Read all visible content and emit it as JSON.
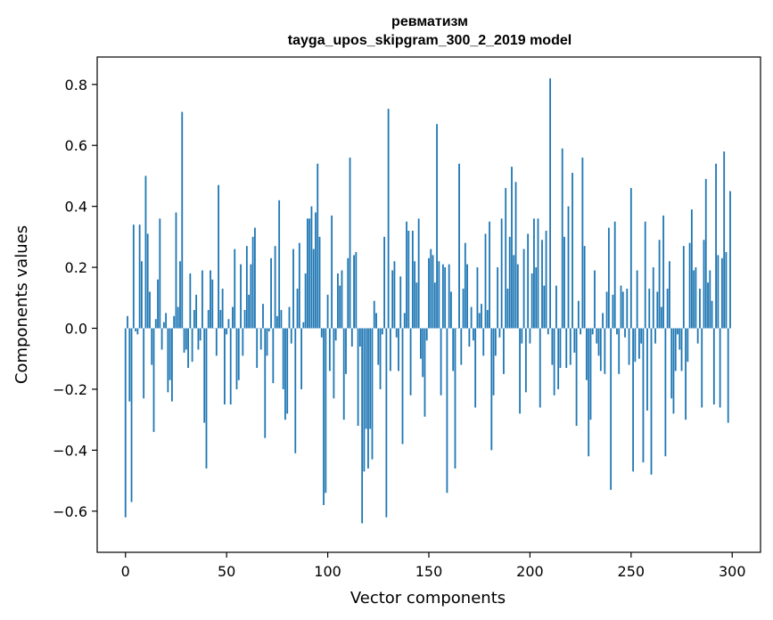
{
  "chart_data": {
    "type": "bar",
    "title": "ревматизм",
    "subtitle": "tayga_upos_skipgram_300_2_2019 model",
    "xlabel": "Vector components",
    "ylabel": "Components values",
    "xlim": [
      -14,
      314
    ],
    "ylim": [
      -0.735,
      0.89
    ],
    "x_ticks": [
      0,
      50,
      100,
      150,
      200,
      250,
      300
    ],
    "x_tick_labels": [
      "0",
      "50",
      "100",
      "150",
      "200",
      "250",
      "300"
    ],
    "y_ticks": [
      -0.6,
      -0.4,
      -0.2,
      0.0,
      0.2,
      0.4,
      0.6,
      0.8
    ],
    "y_tick_labels": [
      "−0.6",
      "−0.4",
      "−0.2",
      "0.0",
      "0.2",
      "0.4",
      "0.6",
      "0.8"
    ],
    "grid": false,
    "bar_color": "#1f77b4",
    "series": [
      {
        "values": [
          -0.62,
          0.04,
          -0.24,
          -0.57,
          0.34,
          -0.01,
          -0.02,
          0.34,
          0.22,
          -0.23,
          0.5,
          0.31,
          0.12,
          -0.12,
          -0.34,
          0.03,
          0.16,
          0.36,
          -0.07,
          0.02,
          0.05,
          -0.21,
          -0.17,
          -0.24,
          0.04,
          0.38,
          0.07,
          0.22,
          0.71,
          -0.08,
          -0.07,
          -0.13,
          0.18,
          -0.11,
          0.06,
          0.11,
          -0.07,
          -0.04,
          0.19,
          -0.31,
          -0.46,
          0.06,
          0.19,
          0.16,
          0.0,
          -0.09,
          0.47,
          0.06,
          0.13,
          -0.25,
          -0.02,
          0.03,
          -0.25,
          0.07,
          0.26,
          -0.2,
          -0.17,
          0.21,
          -0.09,
          0.06,
          0.27,
          0.11,
          0.21,
          0.3,
          0.33,
          -0.13,
          0.0,
          -0.07,
          0.08,
          -0.36,
          -0.09,
          -0.01,
          0.23,
          -0.18,
          0.27,
          0.04,
          0.42,
          0.06,
          -0.2,
          -0.3,
          -0.28,
          0.07,
          -0.05,
          0.26,
          -0.41,
          0.13,
          0.28,
          -0.2,
          0.02,
          0.18,
          0.36,
          0.36,
          0.4,
          0.26,
          0.38,
          0.54,
          0.3,
          -0.03,
          -0.58,
          -0.54,
          0.11,
          -0.14,
          0.37,
          -0.23,
          -0.04,
          0.18,
          0.14,
          0.19,
          -0.3,
          -0.15,
          0.23,
          0.56,
          -0.06,
          0.24,
          0.25,
          -0.32,
          -0.06,
          -0.64,
          -0.47,
          -0.33,
          -0.46,
          -0.33,
          -0.43,
          0.09,
          0.05,
          -0.12,
          -0.2,
          -0.02,
          0.3,
          -0.62,
          0.72,
          -0.14,
          0.19,
          0.22,
          -0.03,
          -0.14,
          0.17,
          -0.38,
          0.05,
          0.35,
          0.32,
          -0.22,
          0.32,
          0.22,
          0.15,
          0.36,
          -0.1,
          -0.16,
          -0.29,
          -0.04,
          0.23,
          0.26,
          0.24,
          0.15,
          0.67,
          0.22,
          -0.22,
          0.21,
          0.2,
          -0.54,
          0.21,
          0.12,
          -0.14,
          -0.46,
          0.0,
          0.54,
          -0.12,
          0.13,
          0.28,
          0.21,
          -0.06,
          0.07,
          -0.04,
          -0.26,
          0.2,
          0.05,
          0.08,
          -0.09,
          0.31,
          0.06,
          0.35,
          -0.4,
          -0.22,
          -0.09,
          0.2,
          -0.03,
          0.36,
          -0.15,
          0.46,
          0.13,
          0.3,
          0.53,
          0.24,
          0.48,
          0.21,
          -0.28,
          -0.05,
          0.26,
          -0.21,
          0.31,
          -0.05,
          0.18,
          0.36,
          0.2,
          0.36,
          -0.26,
          0.29,
          0.14,
          0.32,
          -0.02,
          0.82,
          -0.12,
          -0.22,
          0.14,
          -0.2,
          -0.13,
          0.59,
          0.3,
          -0.13,
          0.4,
          -0.12,
          0.51,
          -0.08,
          -0.32,
          0.09,
          -0.02,
          0.56,
          0.27,
          -0.17,
          -0.42,
          -0.3,
          -0.02,
          0.19,
          -0.05,
          -0.09,
          -0.14,
          0.05,
          -0.15,
          0.12,
          0.33,
          -0.53,
          0.11,
          0.35,
          -0.02,
          -0.15,
          0.14,
          0.12,
          -0.03,
          0.13,
          -0.12,
          0.46,
          -0.47,
          -0.11,
          0.19,
          -0.1,
          -0.05,
          -0.44,
          0.35,
          -0.27,
          0.13,
          -0.48,
          0.2,
          -0.05,
          0.12,
          0.29,
          0.07,
          0.37,
          -0.42,
          0.13,
          0.22,
          -0.23,
          -0.28,
          -0.14,
          -0.02,
          -0.07,
          -0.14,
          0.27,
          -0.3,
          -0.11,
          0.28,
          0.39,
          0.19,
          0.2,
          -0.05,
          0.13,
          -0.26,
          0.29,
          0.49,
          0.15,
          0.19,
          0.09,
          -0.25,
          0.54,
          0.24,
          -0.26,
          0.23,
          0.58,
          0.25,
          -0.31,
          0.45
        ]
      }
    ]
  }
}
